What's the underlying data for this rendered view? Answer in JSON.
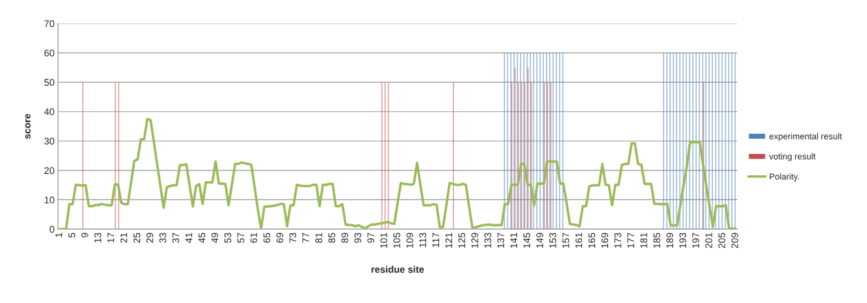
{
  "chart_data": {
    "type": "bar",
    "xlabel": "residue site",
    "ylabel": "score",
    "x": [
      1,
      2,
      3,
      4,
      5,
      6,
      7,
      8,
      9,
      10,
      11,
      12,
      13,
      14,
      15,
      16,
      17,
      18,
      19,
      20,
      21,
      22,
      23,
      24,
      25,
      26,
      27,
      28,
      29,
      30,
      31,
      32,
      33,
      34,
      35,
      36,
      37,
      38,
      39,
      40,
      41,
      42,
      43,
      44,
      45,
      46,
      47,
      48,
      49,
      50,
      51,
      52,
      53,
      54,
      55,
      56,
      57,
      58,
      59,
      60,
      61,
      62,
      63,
      64,
      65,
      66,
      67,
      68,
      69,
      70,
      71,
      72,
      73,
      74,
      75,
      76,
      77,
      78,
      79,
      80,
      81,
      82,
      83,
      84,
      85,
      86,
      87,
      88,
      89,
      90,
      91,
      92,
      93,
      94,
      95,
      96,
      97,
      98,
      99,
      100,
      101,
      102,
      103,
      104,
      105,
      106,
      107,
      108,
      109,
      110,
      111,
      112,
      113,
      114,
      115,
      116,
      117,
      118,
      119,
      120,
      121,
      122,
      123,
      124,
      125,
      126,
      127,
      128,
      129,
      130,
      131,
      132,
      133,
      134,
      135,
      136,
      137,
      138,
      139,
      140,
      141,
      142,
      143,
      144,
      145,
      146,
      147,
      148,
      149,
      150,
      151,
      152,
      153,
      154,
      155,
      156,
      157,
      158,
      159,
      160,
      161,
      162,
      163,
      164,
      165,
      166,
      167,
      168,
      169,
      170,
      171,
      172,
      173,
      174,
      175,
      176,
      177,
      178,
      179,
      180,
      181,
      182,
      183,
      184,
      185,
      186,
      187,
      188,
      189,
      190,
      191,
      192,
      193,
      194,
      195,
      196,
      197,
      198,
      199,
      200,
      201,
      202,
      203,
      204,
      205,
      206,
      207,
      208,
      209
    ],
    "series": [
      {
        "name": "experimental result",
        "color": "#4f81bd",
        "x": [
          138,
          139,
          140,
          141,
          142,
          143,
          144,
          145,
          146,
          147,
          148,
          149,
          150,
          151,
          152,
          153,
          154,
          155,
          156,
          187,
          188,
          189,
          190,
          191,
          192,
          193,
          194,
          195,
          196,
          197,
          198,
          199,
          200,
          201,
          202,
          203,
          204,
          205,
          206,
          207,
          208,
          209
        ],
        "values": [
          60,
          60,
          60,
          60,
          60,
          60,
          60,
          60,
          60,
          60,
          60,
          60,
          60,
          60,
          60,
          60,
          60,
          60,
          60,
          60,
          60,
          60,
          60,
          60,
          60,
          60,
          60,
          60,
          60,
          60,
          60,
          60,
          60,
          60,
          60,
          60,
          60,
          60,
          60,
          60,
          60,
          60
        ]
      },
      {
        "name": "voting result",
        "color": "#c0504d",
        "x": [
          8,
          18,
          19,
          100,
          101,
          102,
          122,
          140,
          141,
          142,
          143,
          144,
          145,
          146,
          150,
          151,
          152,
          199
        ],
        "values": [
          50,
          50,
          50,
          50,
          50,
          50,
          50,
          50,
          55,
          50,
          50,
          50,
          55,
          50,
          50,
          50,
          50,
          50
        ]
      },
      {
        "name": "Polarity.",
        "type": "line",
        "color": "#9bbb59",
        "values": [
          0,
          0,
          0,
          8.5,
          8.5,
          15.1,
          15,
          14.8,
          15,
          7.8,
          7.8,
          8.2,
          8.2,
          8.6,
          8.3,
          8.1,
          8.1,
          15.2,
          15.2,
          8.9,
          8.5,
          8.5,
          16,
          23.3,
          23.7,
          30.6,
          30.6,
          37.5,
          37.1,
          29.7,
          22.2,
          14.8,
          7.3,
          14.3,
          14.7,
          14.9,
          14.9,
          21.8,
          21.8,
          22.1,
          14.9,
          7.7,
          14.7,
          15.3,
          8.6,
          15.9,
          15.9,
          15.9,
          23.0,
          15.5,
          15.5,
          15.4,
          8.1,
          15,
          22.2,
          22.2,
          22.7,
          22.4,
          22.2,
          21.9,
          14.3,
          6.7,
          0.2,
          7.7,
          7.7,
          7.8,
          8.0,
          8.2,
          8.6,
          8.5,
          1.0,
          8.1,
          8.1,
          15.1,
          14.8,
          14.7,
          14.7,
          14.7,
          15.1,
          15.1,
          7.8,
          15.1,
          15.1,
          15.4,
          15.4,
          7.8,
          7.8,
          8.5,
          1.6,
          1.4,
          1.4,
          1.0,
          1.3,
          0.8,
          0.2,
          1.0,
          1.6,
          1.6,
          1.8,
          2.0,
          2.2,
          2.4,
          2.0,
          1.8,
          8.9,
          15.7,
          15.4,
          15.3,
          15.1,
          15.4,
          22.6,
          15.1,
          8.1,
          8.1,
          8.1,
          8.5,
          8.3,
          0.6,
          0.8,
          8.1,
          15.7,
          15.4,
          15.1,
          15.0,
          15.4,
          15.1,
          7.7,
          0.6,
          0.6,
          1.0,
          1.3,
          1.4,
          1.6,
          1.4,
          1.3,
          1.4,
          1.3,
          8.5,
          8.5,
          15.1,
          15.1,
          15.1,
          22.2,
          22.2,
          15.1,
          15.1,
          8.1,
          15.5,
          15.5,
          15.5,
          23.0,
          23.0,
          23.0,
          23.0,
          15.5,
          15.5,
          8.9,
          1.8,
          1.6,
          1.4,
          1.0,
          7.8,
          7.8,
          14.6,
          14.9,
          14.9,
          14.9,
          22.2,
          15.1,
          14.9,
          8.1,
          15.1,
          15.1,
          21.8,
          22.2,
          22.2,
          29.2,
          29.2,
          22.2,
          21.9,
          15.4,
          15.4,
          15.4,
          8.6,
          8.6,
          8.5,
          8.5,
          8.5,
          1.3,
          1.3,
          1.3,
          8.1,
          15.1,
          21.5,
          29.6,
          29.6,
          29.6,
          29.6,
          21.8,
          14.7,
          7.7,
          0.8,
          7.8,
          7.8,
          7.8,
          8.1,
          0.2,
          0.2,
          0.2
        ]
      }
    ],
    "xlim": [
      0.5,
      209.5
    ],
    "xticks": [
      1,
      5,
      9,
      13,
      17,
      21,
      25,
      29,
      33,
      37,
      41,
      45,
      49,
      53,
      57,
      61,
      65,
      69,
      73,
      77,
      81,
      85,
      89,
      93,
      97,
      101,
      105,
      109,
      113,
      117,
      121,
      125,
      129,
      133,
      137,
      141,
      145,
      149,
      153,
      157,
      161,
      165,
      169,
      173,
      177,
      181,
      185,
      189,
      193,
      197,
      201,
      205,
      209
    ],
    "ylim": [
      0,
      70
    ],
    "yticks": [
      0,
      10,
      20,
      30,
      40,
      50,
      60,
      70
    ],
    "grid": "y",
    "legend": "right",
    "marker": "none",
    "line_style": "solid"
  }
}
